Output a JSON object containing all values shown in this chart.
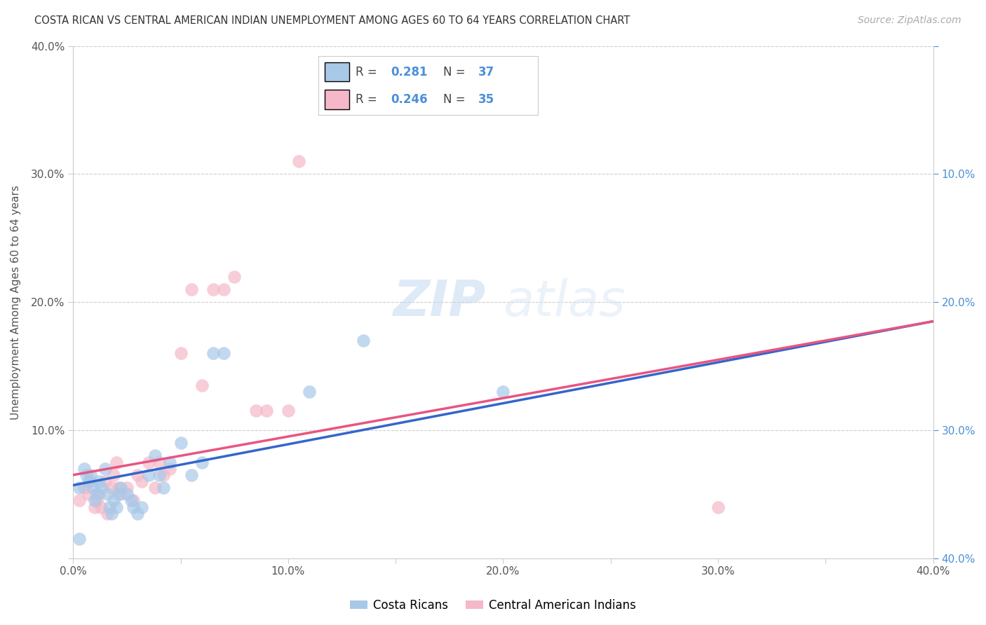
{
  "title": "COSTA RICAN VS CENTRAL AMERICAN INDIAN UNEMPLOYMENT AMONG AGES 60 TO 64 YEARS CORRELATION CHART",
  "source": "Source: ZipAtlas.com",
  "ylabel": "Unemployment Among Ages 60 to 64 years",
  "xlim": [
    0.0,
    0.4
  ],
  "ylim": [
    0.0,
    0.4
  ],
  "xtick_labels": [
    "0.0%",
    "",
    "10.0%",
    "",
    "20.0%",
    "",
    "30.0%",
    "",
    "40.0%"
  ],
  "xtick_vals": [
    0.0,
    0.05,
    0.1,
    0.15,
    0.2,
    0.25,
    0.3,
    0.35,
    0.4
  ],
  "ytick_labels": [
    "",
    "10.0%",
    "20.0%",
    "30.0%",
    "40.0%"
  ],
  "ytick_vals": [
    0.0,
    0.1,
    0.2,
    0.3,
    0.4
  ],
  "right_ytick_labels": [
    "40.0%",
    "30.0%",
    "20.0%",
    "10.0%",
    ""
  ],
  "blue_color": "#a8c8e8",
  "pink_color": "#f4b8c8",
  "blue_line_color": "#3366cc",
  "pink_line_color": "#e85580",
  "R_blue": 0.281,
  "N_blue": 37,
  "R_pink": 0.246,
  "N_pink": 35,
  "watermark_zip": "ZIP",
  "watermark_atlas": "atlas",
  "blue_scatter_x": [
    0.003,
    0.005,
    0.006,
    0.007,
    0.008,
    0.009,
    0.01,
    0.011,
    0.012,
    0.013,
    0.015,
    0.016,
    0.017,
    0.018,
    0.019,
    0.02,
    0.021,
    0.022,
    0.025,
    0.027,
    0.028,
    0.03,
    0.032,
    0.035,
    0.038,
    0.04,
    0.042,
    0.045,
    0.05,
    0.055,
    0.06,
    0.065,
    0.07,
    0.11,
    0.135,
    0.2,
    0.003
  ],
  "blue_scatter_y": [
    0.055,
    0.07,
    0.065,
    0.06,
    0.065,
    0.055,
    0.045,
    0.05,
    0.06,
    0.055,
    0.07,
    0.05,
    0.04,
    0.035,
    0.045,
    0.04,
    0.05,
    0.055,
    0.05,
    0.045,
    0.04,
    0.035,
    0.04,
    0.065,
    0.08,
    0.065,
    0.055,
    0.075,
    0.09,
    0.065,
    0.075,
    0.16,
    0.16,
    0.13,
    0.17,
    0.13,
    0.015
  ],
  "pink_scatter_x": [
    0.003,
    0.005,
    0.007,
    0.008,
    0.01,
    0.011,
    0.012,
    0.013,
    0.015,
    0.016,
    0.018,
    0.019,
    0.02,
    0.021,
    0.022,
    0.025,
    0.028,
    0.03,
    0.032,
    0.035,
    0.038,
    0.04,
    0.042,
    0.045,
    0.05,
    0.055,
    0.06,
    0.065,
    0.07,
    0.075,
    0.085,
    0.09,
    0.1,
    0.105,
    0.3
  ],
  "pink_scatter_y": [
    0.045,
    0.055,
    0.05,
    0.06,
    0.04,
    0.045,
    0.05,
    0.04,
    0.06,
    0.035,
    0.055,
    0.065,
    0.075,
    0.055,
    0.05,
    0.055,
    0.045,
    0.065,
    0.06,
    0.075,
    0.055,
    0.075,
    0.065,
    0.07,
    0.16,
    0.21,
    0.135,
    0.21,
    0.21,
    0.22,
    0.115,
    0.115,
    0.115,
    0.31,
    0.04
  ],
  "blue_trend_x": [
    0.0,
    0.4
  ],
  "blue_trend_y": [
    0.057,
    0.185
  ],
  "pink_trend_x": [
    0.0,
    0.4
  ],
  "pink_trend_y": [
    0.065,
    0.185
  ],
  "grid_color": "#cccccc",
  "background_color": "#ffffff"
}
